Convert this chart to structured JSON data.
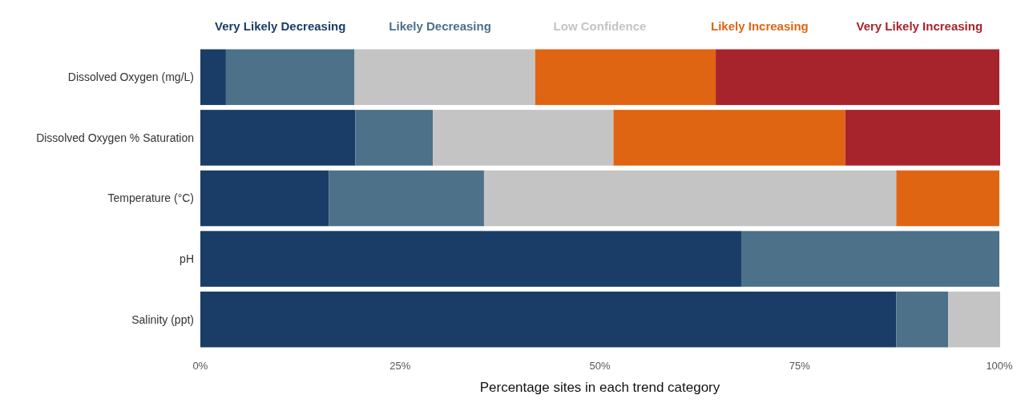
{
  "chart_data": {
    "type": "bar",
    "orientation": "horizontal",
    "stacked": true,
    "xlabel": "Percentage sites in each trend category",
    "categories": [
      "Dissolved Oxygen (mg/L)",
      "Dissolved Oxygen % Saturation",
      "Temperature (°C)",
      "pH",
      "Salinity (ppt)"
    ],
    "series": [
      {
        "name": "Very Likely Decreasing",
        "color": "#1a3d68",
        "values": [
          3.2,
          19.4,
          16.1,
          67.7,
          87.1
        ]
      },
      {
        "name": "Likely Decreasing",
        "color": "#4c7189",
        "values": [
          16.1,
          9.7,
          19.4,
          32.3,
          6.5
        ]
      },
      {
        "name": "Low Confidence",
        "color": "#c4c4c4",
        "values": [
          22.6,
          22.6,
          51.6,
          0,
          6.5
        ]
      },
      {
        "name": "Likely Increasing",
        "color": "#e06512",
        "values": [
          22.6,
          29.0,
          12.9,
          0,
          0
        ]
      },
      {
        "name": "Very Likely Increasing",
        "color": "#a8242c",
        "values": [
          35.5,
          19.4,
          0,
          0,
          0
        ]
      }
    ],
    "xlim": [
      0,
      100
    ],
    "xticks": [
      {
        "value": 0,
        "label": "0%"
      },
      {
        "value": 25,
        "label": "25%"
      },
      {
        "value": 50,
        "label": "50%"
      },
      {
        "value": 75,
        "label": "75%"
      },
      {
        "value": 100,
        "label": "100%"
      }
    ],
    "legend": "top"
  }
}
